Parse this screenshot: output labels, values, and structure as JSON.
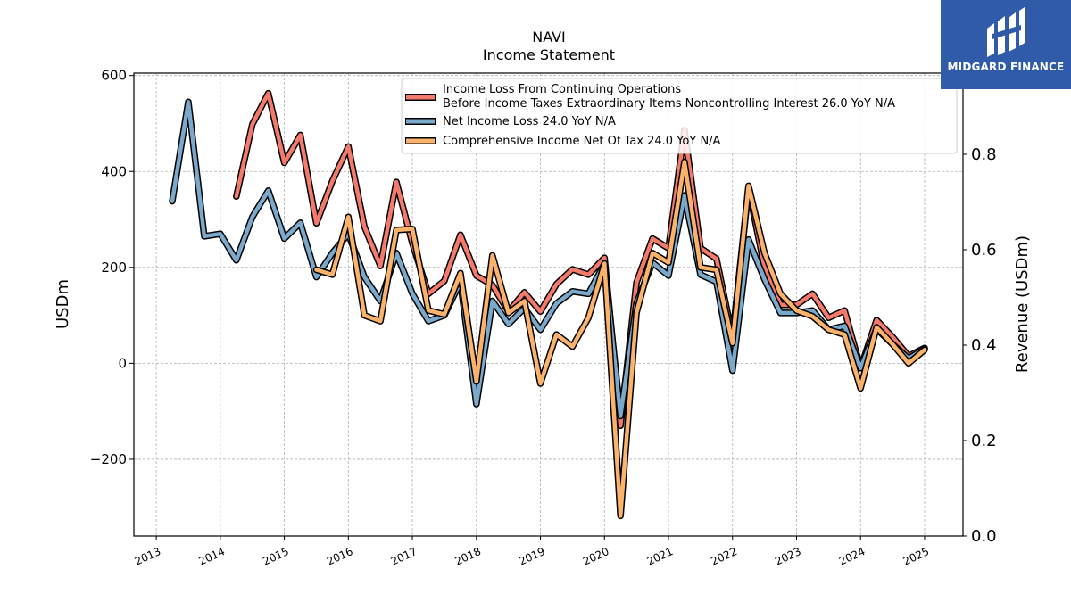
{
  "chart_data": {
    "type": "line",
    "title": "NAVI",
    "subtitle": "Income Statement",
    "ylabel": "USDm",
    "y2label": "Revenue (USDm)",
    "ylim": [
      -360,
      605
    ],
    "y2lim": [
      0.0,
      0.97
    ],
    "xlim": [
      2012.65,
      2025.6
    ],
    "yticks": [
      600,
      400,
      200,
      0,
      -200
    ],
    "ytick_labels": [
      "600",
      "400",
      "200",
      "0",
      "−200"
    ],
    "y2ticks": [
      0.0,
      0.2,
      0.4,
      0.6,
      0.8
    ],
    "y2tick_labels": [
      "0.0",
      "0.2",
      "0.4",
      "0.6",
      "0.8"
    ],
    "xticks": [
      2013,
      2014,
      2015,
      2016,
      2017,
      2018,
      2019,
      2020,
      2021,
      2022,
      2023,
      2024,
      2025
    ],
    "xtick_labels": [
      "2013",
      "2014",
      "2015",
      "2016",
      "2017",
      "2018",
      "2019",
      "2020",
      "2021",
      "2022",
      "2023",
      "2024",
      "2025"
    ],
    "grid": true,
    "legend_position": "top-right",
    "series": [
      {
        "name": "Income Loss From Continuing Operations",
        "name_line2": "Before Income Taxes Extraordinary Items Noncontrolling Interest  26.0 YoY N/A",
        "color": "#f47a6c",
        "x": [
          2014.25,
          2014.5,
          2014.75,
          2015.0,
          2015.25,
          2015.5,
          2015.75,
          2016.0,
          2016.25,
          2016.5,
          2016.75,
          2017.0,
          2017.25,
          2017.5,
          2017.75,
          2018.0,
          2018.25,
          2018.5,
          2018.75,
          2019.0,
          2019.25,
          2019.5,
          2019.75,
          2020.0,
          2020.25,
          2020.5,
          2020.75,
          2021.0,
          2021.25,
          2021.5,
          2021.75,
          2022.0,
          2022.25,
          2022.5,
          2022.75,
          2023.0,
          2023.25,
          2023.5,
          2023.75,
          2024.0,
          2024.25,
          2024.5,
          2024.75,
          2025.0
        ],
        "values": [
          348,
          498,
          563,
          418,
          476,
          292,
          380,
          452,
          285,
          203,
          378,
          250,
          145,
          172,
          268,
          183,
          163,
          108,
          148,
          108,
          165,
          196,
          185,
          220,
          -130,
          168,
          260,
          240,
          486,
          240,
          218,
          55,
          365,
          200,
          122,
          122,
          145,
          95,
          110,
          -10,
          90,
          55,
          15,
          32
        ]
      },
      {
        "name": "Net Income Loss  24.0 YoY N/A",
        "color": "#7aa9cc",
        "x": [
          2013.25,
          2013.5,
          2013.75,
          2014.0,
          2014.25,
          2014.5,
          2014.75,
          2015.0,
          2015.25,
          2015.5,
          2015.75,
          2016.0,
          2016.25,
          2016.5,
          2016.75,
          2017.0,
          2017.25,
          2017.5,
          2017.75,
          2018.0,
          2018.25,
          2018.5,
          2018.75,
          2019.0,
          2019.25,
          2019.5,
          2019.75,
          2020.0,
          2020.25,
          2020.5,
          2020.75,
          2021.0,
          2021.25,
          2021.5,
          2021.75,
          2022.0,
          2022.25,
          2022.5,
          2022.75,
          2023.0,
          2023.25,
          2023.5,
          2023.75,
          2024.0,
          2024.25,
          2024.5,
          2024.75,
          2025.0
        ],
        "values": [
          338,
          545,
          265,
          270,
          215,
          305,
          360,
          260,
          293,
          180,
          230,
          270,
          180,
          130,
          230,
          145,
          88,
          100,
          170,
          -85,
          130,
          82,
          115,
          70,
          125,
          150,
          145,
          208,
          -110,
          125,
          210,
          183,
          350,
          185,
          170,
          -15,
          258,
          175,
          105,
          105,
          110,
          70,
          78,
          -10,
          72,
          40,
          10,
          30
        ]
      },
      {
        "name": "Comprehensive Income Net Of Tax  24.0 YoY N/A",
        "color": "#fbb36b",
        "x": [
          2015.5,
          2015.75,
          2016.0,
          2016.25,
          2016.5,
          2016.75,
          2017.0,
          2017.25,
          2017.5,
          2017.75,
          2018.0,
          2018.25,
          2018.5,
          2018.75,
          2019.0,
          2019.25,
          2019.5,
          2019.75,
          2020.0,
          2020.25,
          2020.5,
          2020.75,
          2021.0,
          2021.25,
          2021.5,
          2021.75,
          2022.0,
          2022.25,
          2022.5,
          2022.75,
          2023.0,
          2023.25,
          2023.5,
          2023.75,
          2024.0,
          2024.25,
          2024.5,
          2024.75,
          2025.0
        ],
        "values": [
          195,
          185,
          305,
          100,
          88,
          278,
          280,
          110,
          102,
          188,
          -38,
          225,
          105,
          130,
          -42,
          60,
          35,
          95,
          208,
          -318,
          105,
          230,
          210,
          420,
          200,
          195,
          42,
          370,
          230,
          145,
          110,
          98,
          70,
          60,
          -52,
          75,
          40,
          0,
          28
        ]
      }
    ]
  },
  "logo": {
    "text": "MIDGARD FINANCE"
  }
}
